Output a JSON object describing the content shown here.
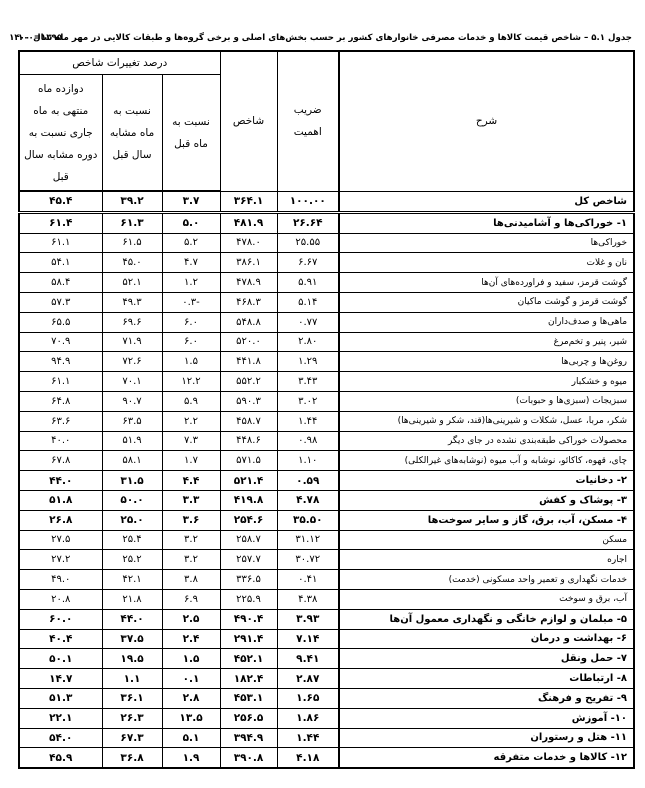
{
  "header": {
    "title": "جدول ۵.۱ – شاخص قیمت کالاها و خدمات مصرفی خانوارهای کشور بر حسب بخش‌های اصلی و برخی گروه‌ها و طبقات کالایی در مهر ماه سال ۱۴۰۰",
    "base": "۱۳۹۵=۱۰۰"
  },
  "table": {
    "columns": [
      "شرح",
      "ضریب اهمیت",
      "شاخص"
    ],
    "group": "درصد تغییرات شاخص",
    "subcolumns": [
      "نسبت به ماه قبل",
      "نسبت به ماه مشابه سال قبل",
      "دوازده ماه منتهی به ماه جاری نسبت به دوره مشابه سال قبل"
    ],
    "rows": [
      {
        "label": "شاخص کل",
        "values": [
          "۱۰۰.۰۰",
          "۳۶۴.۱",
          "۳.۷",
          "۳۹.۲",
          "۴۵.۴"
        ],
        "bold": true
      },
      {
        "label": "۱- خوراکی‌ها و آشامیدنی‌ها",
        "values": [
          "۲۶.۶۴",
          "۴۸۱.۹",
          "۵.۰",
          "۶۱.۳",
          "۶۱.۴"
        ],
        "bold": true
      },
      {
        "label": "خوراکی‌ها",
        "values": [
          "۲۵.۵۵",
          "۴۷۸.۰",
          "۵.۲",
          "۶۱.۵",
          "۶۱.۱"
        ],
        "bold": false
      },
      {
        "label": "نان و غلات",
        "values": [
          "۶.۶۷",
          "۳۸۶.۱",
          "۴.۷",
          "۴۵.۰",
          "۵۴.۱"
        ],
        "bold": false
      },
      {
        "label": "گوشت قرمز، سفید و فراورده‌های آن‌ها",
        "values": [
          "۵.۹۱",
          "۴۷۸.۹",
          "۱.۲",
          "۵۲.۱",
          "۵۸.۴"
        ],
        "bold": false
      },
      {
        "label": "گوشت قرمز و گوشت ماکیان",
        "values": [
          "۵.۱۴",
          "۴۶۸.۳",
          "-۰.۳",
          "۴۹.۳",
          "۵۷.۳"
        ],
        "bold": false
      },
      {
        "label": "ماهی‌ها و صدف‌داران",
        "values": [
          "۰.۷۷",
          "۵۴۸.۸",
          "۶.۰",
          "۶۹.۶",
          "۶۵.۵"
        ],
        "bold": false
      },
      {
        "label": "شیر، پنیر و تخم‌مرغ",
        "values": [
          "۲.۸۰",
          "۵۲۰.۰",
          "۶.۰",
          "۷۱.۹",
          "۷۰.۹"
        ],
        "bold": false
      },
      {
        "label": "روغن‌ها و چربی‌ها",
        "values": [
          "۱.۲۹",
          "۴۴۱.۸",
          "۱.۵",
          "۷۲.۶",
          "۹۴.۹"
        ],
        "bold": false
      },
      {
        "label": "میوه و خشکبار",
        "values": [
          "۳.۴۳",
          "۵۵۲.۲",
          "۱۲.۲",
          "۷۰.۱",
          "۶۱.۱"
        ],
        "bold": false
      },
      {
        "label": "سبزیجات (سبزی‌ها و حبوبات)",
        "values": [
          "۳.۰۲",
          "۵۹۰.۳",
          "۵.۹",
          "۹۰.۷",
          "۶۴.۸"
        ],
        "bold": false
      },
      {
        "label": "شکر، مربا، عسل، شکلات و شیرینی‌ها(قند، شکر و شیرینی‌ها)",
        "values": [
          "۱.۴۴",
          "۴۵۸.۷",
          "۲.۲",
          "۶۳.۵",
          "۶۳.۶"
        ],
        "bold": false
      },
      {
        "label": "محصولات خوراکی طبقه‌بندی نشده در جای دیگر",
        "values": [
          "۰.۹۸",
          "۴۴۸.۶",
          "۷.۳",
          "۵۱.۹",
          "۴۰.۰"
        ],
        "bold": false
      },
      {
        "label": "چای، قهوه، کاکائو، نوشابه و آب میوه (نوشابه‌های غیرالکلی)",
        "values": [
          "۱.۱۰",
          "۵۷۱.۵",
          "۱.۷",
          "۵۸.۱",
          "۶۷.۸"
        ],
        "bold": false
      },
      {
        "label": "۲- دخانیات",
        "values": [
          "۰.۵۹",
          "۵۲۱.۴",
          "۴.۴",
          "۳۱.۵",
          "۴۴.۰"
        ],
        "bold": true
      },
      {
        "label": "۳- پوشاک و کفش",
        "values": [
          "۴.۷۸",
          "۴۱۹.۸",
          "۳.۳",
          "۵۰.۰",
          "۵۱.۸"
        ],
        "bold": true
      },
      {
        "label": "۴- مسکن، آب، برق، گاز و سایر سوخت‌ها",
        "values": [
          "۳۵.۵۰",
          "۲۵۴.۶",
          "۳.۶",
          "۲۵.۰",
          "۲۶.۸"
        ],
        "bold": true
      },
      {
        "label": "مسکن",
        "values": [
          "۳۱.۱۲",
          "۲۵۸.۷",
          "۳.۲",
          "۲۵.۴",
          "۲۷.۵"
        ],
        "bold": false
      },
      {
        "label": "اجاره",
        "values": [
          "۳۰.۷۲",
          "۲۵۷.۷",
          "۳.۲",
          "۲۵.۲",
          "۲۷.۲"
        ],
        "bold": false
      },
      {
        "label": "خدمات نگهداری و تعمیر واحد مسکونی (خدمت)",
        "values": [
          "۰.۴۱",
          "۳۳۶.۵",
          "۳.۸",
          "۴۲.۱",
          "۴۹.۰"
        ],
        "bold": false
      },
      {
        "label": "آب، برق و سوخت",
        "values": [
          "۴.۳۸",
          "۲۲۵.۹",
          "۶.۹",
          "۲۱.۸",
          "۲۰.۸"
        ],
        "bold": false
      },
      {
        "label": "۵- مبلمان و لوازم خانگی و نگهداری معمول آن‌ها",
        "values": [
          "۳.۹۳",
          "۴۹۰.۴",
          "۲.۵",
          "۴۴.۰",
          "۶۰.۰"
        ],
        "bold": true
      },
      {
        "label": "۶- بهداشت و درمان",
        "values": [
          "۷.۱۴",
          "۲۹۱.۴",
          "۲.۴",
          "۳۷.۵",
          "۴۰.۴"
        ],
        "bold": true
      },
      {
        "label": "۷- حمل ونقل",
        "values": [
          "۹.۴۱",
          "۴۵۲.۱",
          "۱.۵",
          "۱۹.۵",
          "۵۰.۱"
        ],
        "bold": true
      },
      {
        "label": "۸- ارتباطات",
        "values": [
          "۲.۸۷",
          "۱۸۲.۴",
          "۰.۱",
          "۱.۱",
          "۱۴.۷"
        ],
        "bold": true
      },
      {
        "label": "۹- تفریح و فرهنگ",
        "values": [
          "۱.۶۵",
          "۴۵۳.۱",
          "۲.۸",
          "۳۶.۱",
          "۵۱.۳"
        ],
        "bold": true
      },
      {
        "label": "۱۰- آموزش",
        "values": [
          "۱.۸۶",
          "۲۵۶.۵",
          "۱۳.۵",
          "۲۶.۳",
          "۲۲.۱"
        ],
        "bold": true
      },
      {
        "label": "۱۱- هتل و رستوران",
        "values": [
          "۱.۴۴",
          "۳۹۴.۹",
          "۵.۱",
          "۶۷.۳",
          "۵۴.۰"
        ],
        "bold": true
      },
      {
        "label": "۱۲- کالاها و خدمات متفرقه",
        "values": [
          "۴.۱۸",
          "۳۹۰.۸",
          "۱.۹",
          "۳۶.۸",
          "۴۵.۹"
        ],
        "bold": true
      }
    ]
  }
}
